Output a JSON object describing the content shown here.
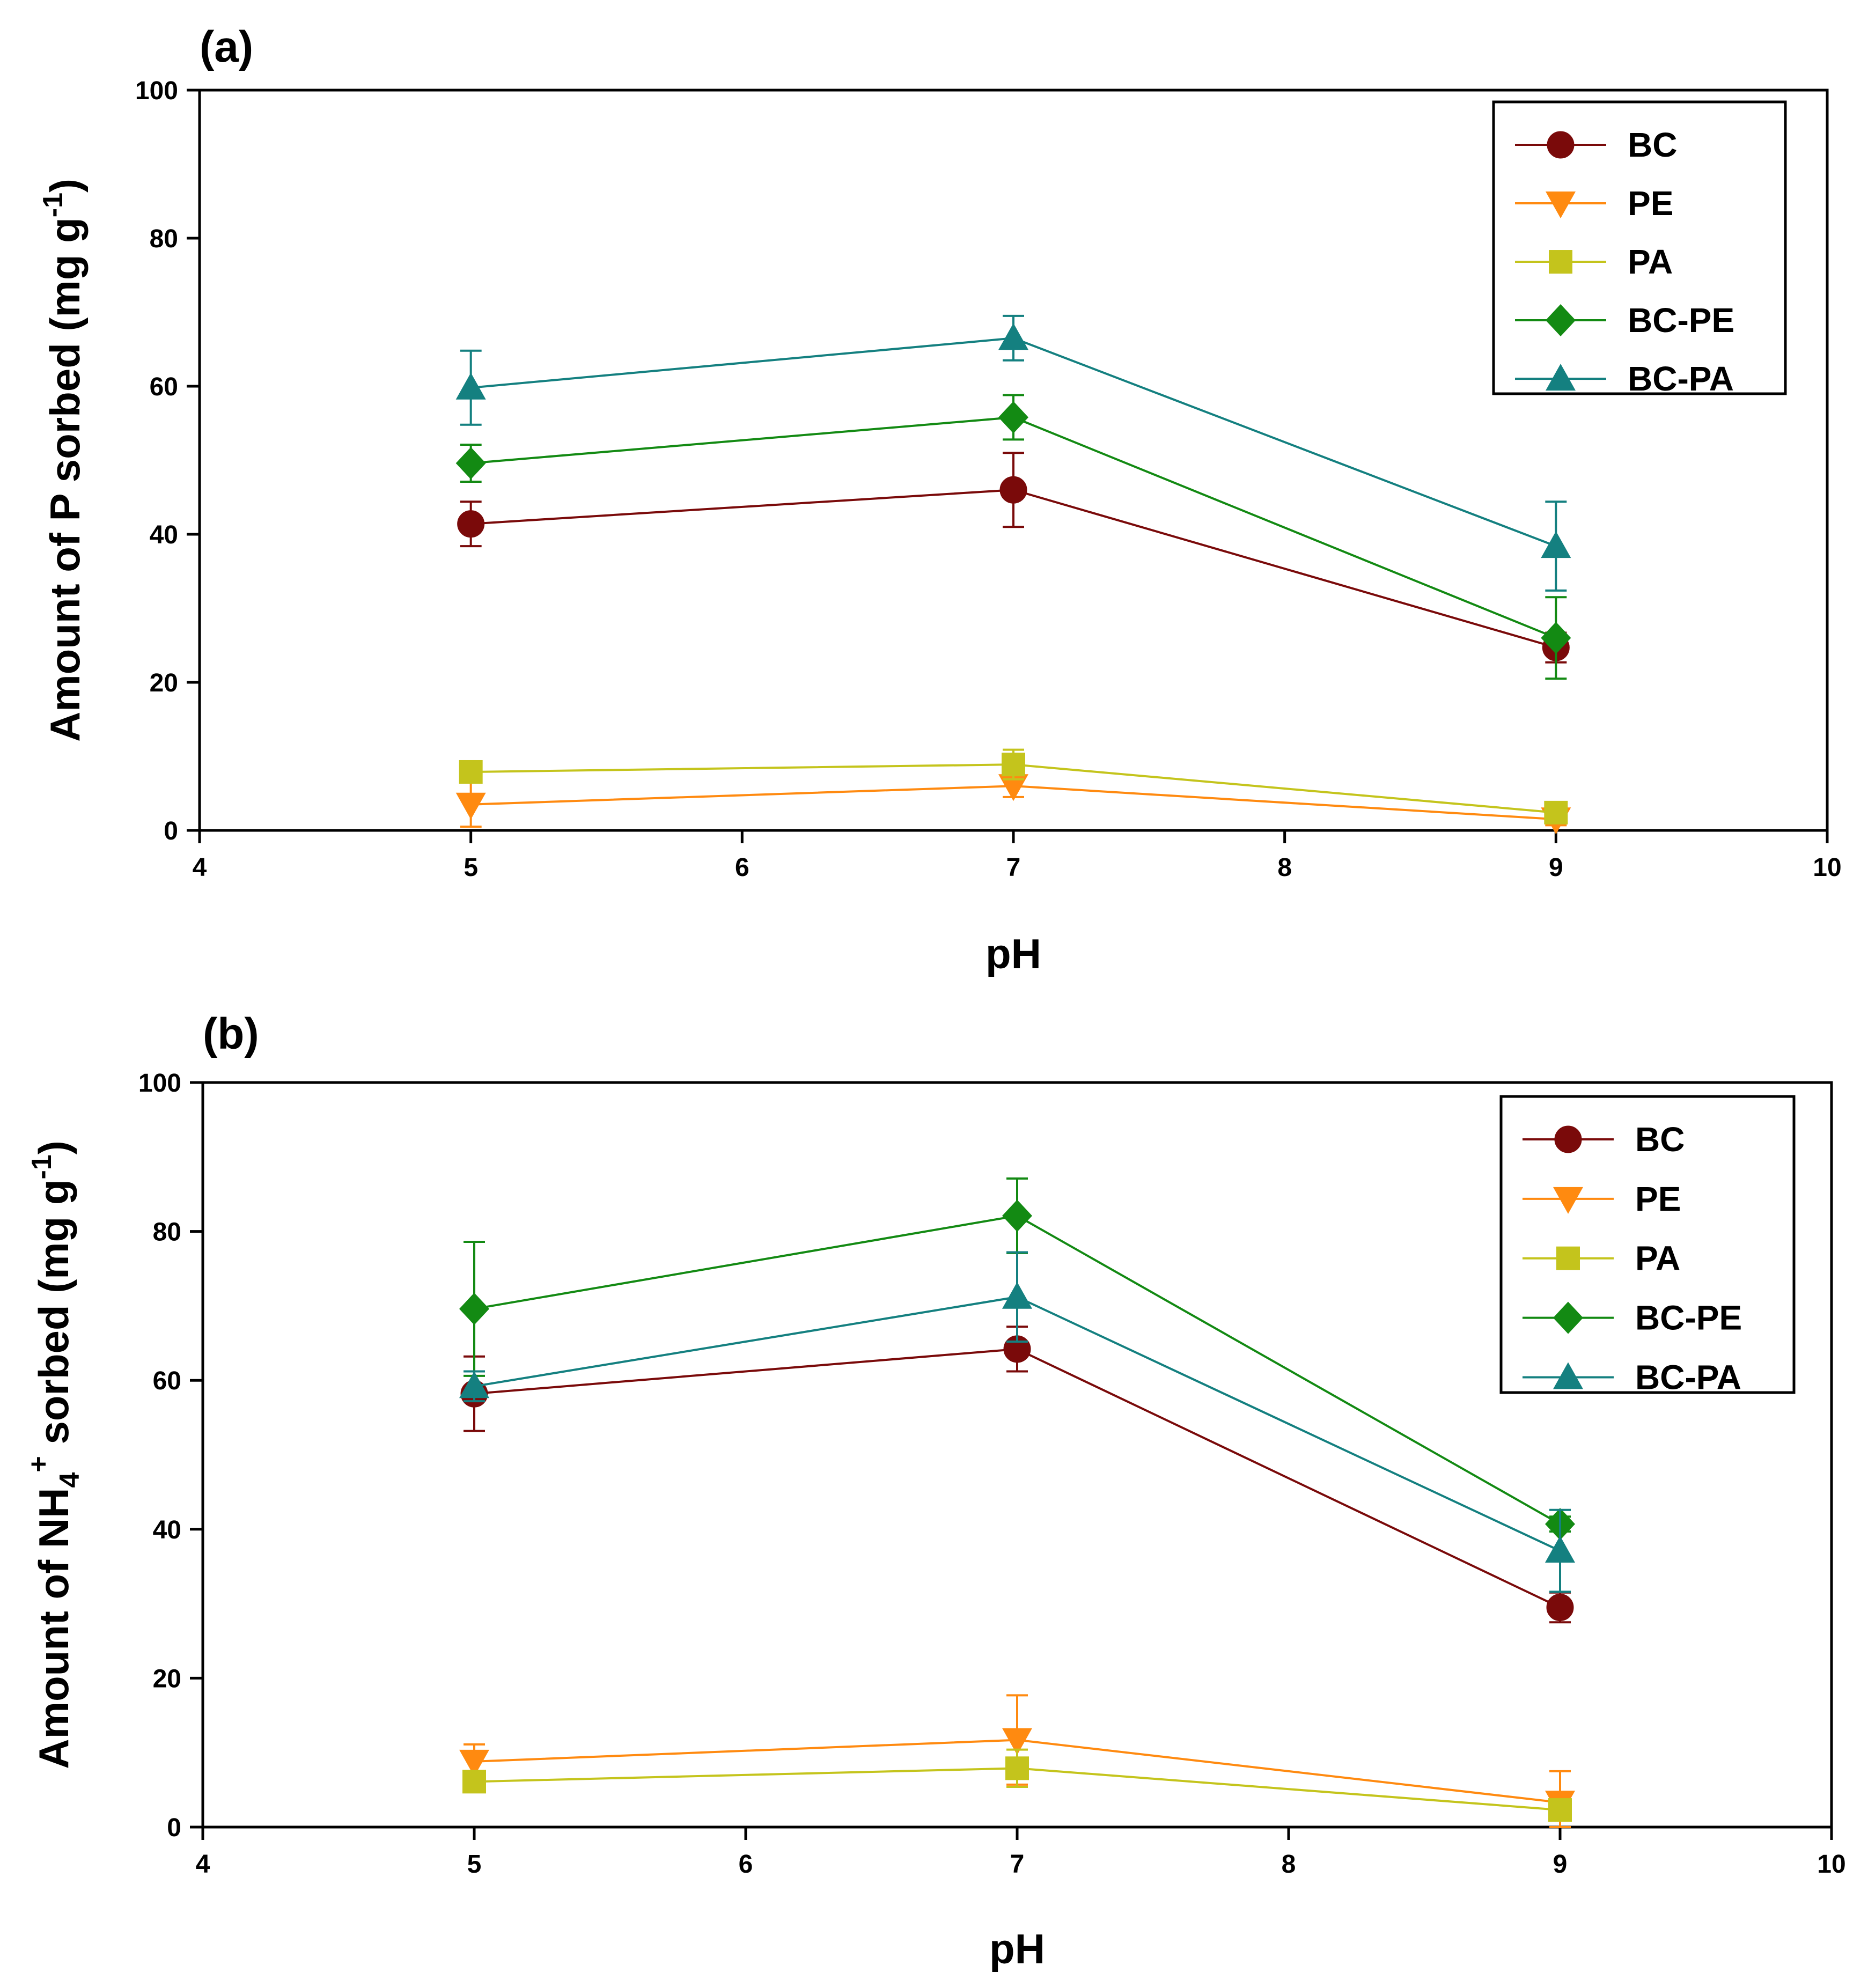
{
  "colors": {
    "BC": "#7a0a0a",
    "PE": "#ff8a10",
    "PA": "#c4c41c",
    "BC-PE": "#138a13",
    "BC-PA": "#148080"
  },
  "chart_data": [
    {
      "type": "line",
      "panel_label": "(a)",
      "xlabel": "pH",
      "ylabel": "Amount of P sorbed (mg g",
      "ylabel_sup": "-1",
      "ylabel_tail": ")",
      "xlim": [
        4,
        10
      ],
      "ylim": [
        0,
        100
      ],
      "xticks": [
        4,
        5,
        6,
        7,
        8,
        9,
        10
      ],
      "yticks": [
        0,
        20,
        40,
        60,
        80,
        100
      ],
      "x": [
        5,
        7,
        9
      ],
      "legend_position": "top-right",
      "series": [
        {
          "name": "BC",
          "marker": "circle",
          "values": [
            41.4,
            46.0,
            24.7
          ],
          "err": [
            3.0,
            5.0,
            2.0
          ]
        },
        {
          "name": "PE",
          "marker": "triangle-down",
          "values": [
            3.5,
            6.0,
            1.5
          ],
          "err": [
            3.0,
            1.5,
            0.8
          ]
        },
        {
          "name": "PA",
          "marker": "square",
          "values": [
            7.9,
            8.9,
            2.4
          ],
          "err": [
            0.8,
            2.0,
            0.6
          ]
        },
        {
          "name": "BC-PE",
          "marker": "diamond",
          "values": [
            49.6,
            55.8,
            26.0
          ],
          "err": [
            2.5,
            3.0,
            5.5
          ]
        },
        {
          "name": "BC-PA",
          "marker": "triangle-up",
          "values": [
            59.8,
            66.5,
            38.4
          ],
          "err": [
            5.0,
            3.0,
            6.0
          ]
        }
      ]
    },
    {
      "type": "line",
      "panel_label": "(b)",
      "xlabel": "pH",
      "ylabel": "Amount of NH",
      "ylabel_sub": "4",
      "ylabel_sup": "+",
      "ylabel_tail": " sorbed (mg g",
      "ylabel_sup2": "-1",
      "ylabel_tail2": ")",
      "xlim": [
        4,
        10
      ],
      "ylim": [
        0,
        100
      ],
      "xticks": [
        4,
        5,
        6,
        7,
        8,
        9,
        10
      ],
      "yticks": [
        0,
        20,
        40,
        60,
        80,
        100
      ],
      "x": [
        5,
        7,
        9
      ],
      "legend_position": "top-right",
      "series": [
        {
          "name": "BC",
          "marker": "circle",
          "values": [
            58.2,
            64.2,
            29.5
          ],
          "err": [
            5.0,
            3.0,
            2.0
          ]
        },
        {
          "name": "PE",
          "marker": "triangle-down",
          "values": [
            8.8,
            11.7,
            3.3
          ],
          "err": [
            2.3,
            6.0,
            4.2
          ]
        },
        {
          "name": "PA",
          "marker": "square",
          "values": [
            6.1,
            7.9,
            2.3
          ],
          "err": [
            1.0,
            2.5,
            1.0
          ]
        },
        {
          "name": "BC-PE",
          "marker": "diamond",
          "values": [
            69.6,
            82.1,
            40.7
          ],
          "err": [
            9.0,
            5.0,
            1.0
          ]
        },
        {
          "name": "BC-PA",
          "marker": "triangle-up",
          "values": [
            59.2,
            71.2,
            37.1
          ],
          "err": [
            2.0,
            6.0,
            5.5
          ]
        }
      ]
    }
  ]
}
